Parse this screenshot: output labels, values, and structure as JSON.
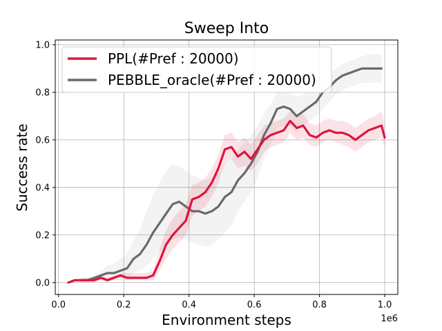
{
  "chart_data": {
    "type": "line",
    "title": "Sweep Into",
    "xlabel": "Environment steps",
    "ylabel": "Success rate",
    "x_scale_label": "1e6",
    "xlim": [
      -0.01,
      1.04
    ],
    "ylim": [
      -0.05,
      1.02
    ],
    "xticks": [
      0.0,
      0.2,
      0.4,
      0.6,
      0.8,
      1.0
    ],
    "xtick_labels": [
      "0.0",
      "0.2",
      "0.4",
      "0.6",
      "0.8",
      "1.0"
    ],
    "yticks": [
      0.0,
      0.2,
      0.4,
      0.6,
      0.8,
      1.0
    ],
    "ytick_labels": [
      "0.0",
      "0.2",
      "0.4",
      "0.6",
      "0.8",
      "1.0"
    ],
    "grid": true,
    "legend_position": "upper-left",
    "series": [
      {
        "name": "PPL(#Pref : 20000)",
        "color": "#dc143c",
        "x": [
          0.03,
          0.05,
          0.07,
          0.09,
          0.11,
          0.13,
          0.15,
          0.17,
          0.19,
          0.21,
          0.23,
          0.25,
          0.27,
          0.29,
          0.31,
          0.33,
          0.35,
          0.37,
          0.39,
          0.41,
          0.43,
          0.45,
          0.47,
          0.49,
          0.51,
          0.53,
          0.55,
          0.57,
          0.59,
          0.61,
          0.63,
          0.65,
          0.67,
          0.69,
          0.71,
          0.73,
          0.75,
          0.77,
          0.79,
          0.81,
          0.83,
          0.85,
          0.87,
          0.89,
          0.91,
          0.93,
          0.95,
          0.97,
          0.99,
          1.0
        ],
        "values": [
          0.0,
          0.01,
          0.01,
          0.01,
          0.01,
          0.02,
          0.01,
          0.02,
          0.03,
          0.02,
          0.02,
          0.02,
          0.02,
          0.03,
          0.09,
          0.16,
          0.2,
          0.23,
          0.26,
          0.35,
          0.36,
          0.38,
          0.42,
          0.48,
          0.56,
          0.57,
          0.53,
          0.55,
          0.52,
          0.56,
          0.6,
          0.62,
          0.63,
          0.64,
          0.68,
          0.65,
          0.66,
          0.62,
          0.61,
          0.63,
          0.64,
          0.63,
          0.63,
          0.62,
          0.6,
          0.62,
          0.64,
          0.65,
          0.66,
          0.61
        ],
        "lower": [
          0.0,
          0.0,
          0.0,
          0.0,
          0.0,
          0.01,
          0.0,
          0.01,
          0.01,
          0.01,
          0.01,
          0.01,
          0.01,
          0.01,
          0.05,
          0.1,
          0.14,
          0.17,
          0.2,
          0.28,
          0.3,
          0.32,
          0.36,
          0.42,
          0.5,
          0.52,
          0.48,
          0.49,
          0.47,
          0.5,
          0.55,
          0.57,
          0.58,
          0.59,
          0.63,
          0.6,
          0.61,
          0.58,
          0.57,
          0.59,
          0.6,
          0.59,
          0.58,
          0.57,
          0.55,
          0.57,
          0.59,
          0.6,
          0.61,
          0.57
        ],
        "upper": [
          0.0,
          0.01,
          0.02,
          0.02,
          0.02,
          0.03,
          0.02,
          0.03,
          0.04,
          0.04,
          0.04,
          0.04,
          0.04,
          0.05,
          0.14,
          0.22,
          0.27,
          0.3,
          0.33,
          0.41,
          0.42,
          0.44,
          0.48,
          0.54,
          0.62,
          0.63,
          0.59,
          0.61,
          0.58,
          0.62,
          0.66,
          0.67,
          0.68,
          0.69,
          0.72,
          0.7,
          0.71,
          0.67,
          0.66,
          0.68,
          0.69,
          0.68,
          0.68,
          0.67,
          0.65,
          0.67,
          0.69,
          0.7,
          0.72,
          0.66
        ]
      },
      {
        "name": "PEBBLE_oracle(#Pref : 20000)",
        "color": "#696969",
        "x": [
          0.07,
          0.09,
          0.11,
          0.13,
          0.15,
          0.17,
          0.19,
          0.21,
          0.23,
          0.25,
          0.27,
          0.29,
          0.31,
          0.33,
          0.35,
          0.37,
          0.39,
          0.41,
          0.43,
          0.45,
          0.47,
          0.49,
          0.51,
          0.53,
          0.55,
          0.57,
          0.59,
          0.61,
          0.63,
          0.65,
          0.67,
          0.69,
          0.71,
          0.73,
          0.75,
          0.77,
          0.79,
          0.81,
          0.83,
          0.85,
          0.87,
          0.89,
          0.91,
          0.93,
          0.95,
          0.97,
          0.99
        ],
        "values": [
          0.01,
          0.01,
          0.02,
          0.03,
          0.04,
          0.04,
          0.05,
          0.06,
          0.1,
          0.12,
          0.16,
          0.21,
          0.25,
          0.29,
          0.33,
          0.34,
          0.32,
          0.3,
          0.3,
          0.29,
          0.3,
          0.32,
          0.36,
          0.38,
          0.43,
          0.46,
          0.5,
          0.55,
          0.62,
          0.67,
          0.73,
          0.74,
          0.73,
          0.7,
          0.72,
          0.74,
          0.76,
          0.8,
          0.82,
          0.85,
          0.87,
          0.88,
          0.89,
          0.9,
          0.9,
          0.9,
          0.9
        ],
        "lower": [
          0.0,
          0.0,
          0.01,
          0.02,
          0.02,
          0.02,
          0.02,
          0.02,
          0.04,
          0.05,
          0.07,
          0.1,
          0.13,
          0.15,
          0.18,
          0.19,
          0.18,
          0.17,
          0.16,
          0.15,
          0.16,
          0.18,
          0.21,
          0.24,
          0.3,
          0.34,
          0.38,
          0.44,
          0.52,
          0.58,
          0.65,
          0.66,
          0.66,
          0.63,
          0.66,
          0.68,
          0.7,
          0.73,
          0.76,
          0.79,
          0.81,
          0.82,
          0.83,
          0.84,
          0.84,
          0.84,
          0.84
        ],
        "upper": [
          0.02,
          0.02,
          0.03,
          0.05,
          0.07,
          0.08,
          0.1,
          0.12,
          0.18,
          0.22,
          0.3,
          0.37,
          0.42,
          0.47,
          0.5,
          0.49,
          0.47,
          0.45,
          0.44,
          0.43,
          0.44,
          0.46,
          0.5,
          0.52,
          0.56,
          0.59,
          0.62,
          0.66,
          0.71,
          0.75,
          0.8,
          0.81,
          0.8,
          0.78,
          0.79,
          0.81,
          0.82,
          0.86,
          0.88,
          0.9,
          0.92,
          0.93,
          0.94,
          0.95,
          0.96,
          0.96,
          0.96
        ]
      }
    ]
  }
}
